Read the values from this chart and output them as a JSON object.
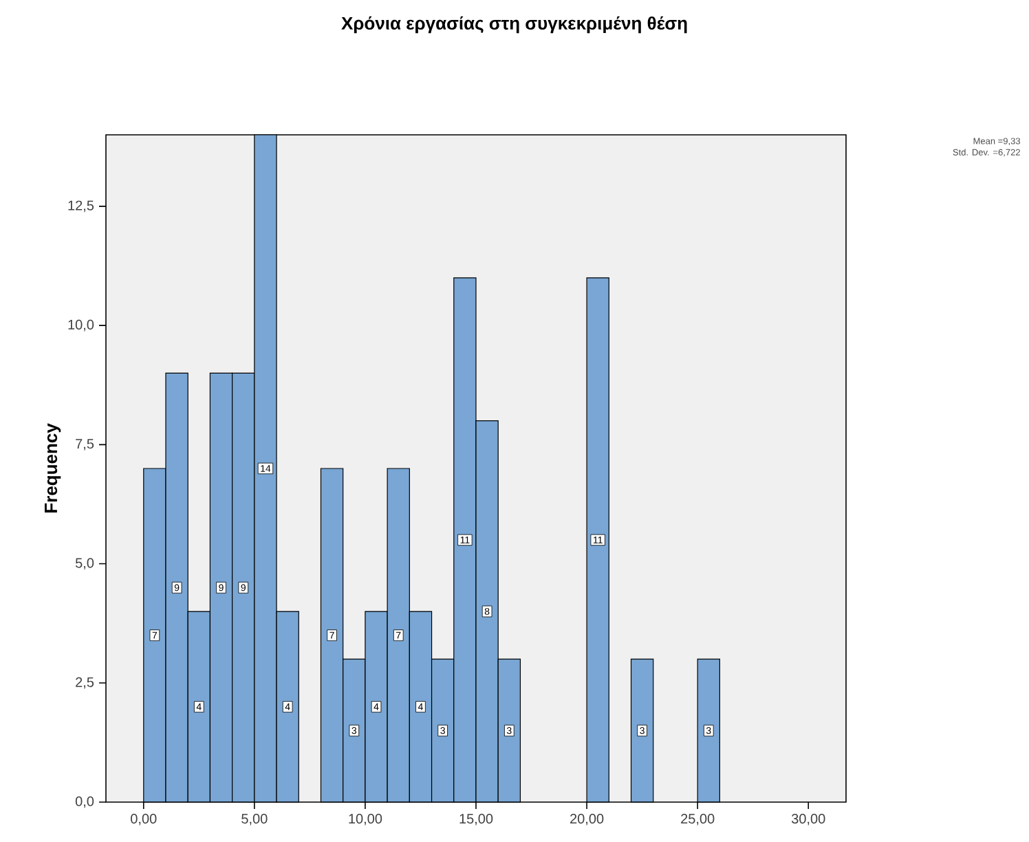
{
  "chart_data": {
    "type": "histogram",
    "title": "Χρόνια εργασίας στη συγκεκριμένη θέση",
    "ylabel": "Frequency",
    "bins": [
      0,
      1,
      2,
      3,
      4,
      5,
      6,
      7,
      8,
      9,
      10,
      11,
      12,
      13,
      14,
      15,
      16,
      17,
      18,
      19,
      20,
      21,
      22,
      23,
      24,
      25,
      26
    ],
    "values": [
      7,
      9,
      4,
      9,
      9,
      14,
      4,
      0,
      7,
      3,
      4,
      7,
      4,
      3,
      11,
      8,
      3,
      0,
      0,
      0,
      11,
      0,
      3,
      0,
      0,
      3
    ],
    "value_labels": [
      "7",
      "9",
      "4",
      "9",
      "9",
      "14",
      "4",
      null,
      "7",
      "3",
      "4",
      "7",
      "4",
      "3",
      "11",
      "8",
      "3",
      null,
      null,
      null,
      "11",
      null,
      "3",
      null,
      null,
      "3"
    ],
    "color": "#79a6d4",
    "xlim": [
      -1.7,
      31.7
    ],
    "ylim": [
      0,
      14
    ],
    "xticks": [
      {
        "value": 0,
        "label": "0,00"
      },
      {
        "value": 5,
        "label": "5,00"
      },
      {
        "value": 10,
        "label": "10,00"
      },
      {
        "value": 15,
        "label": "15,00"
      },
      {
        "value": 20,
        "label": "20,00"
      },
      {
        "value": 25,
        "label": "25,00"
      },
      {
        "value": 30,
        "label": "30,00"
      }
    ],
    "yticks": [
      {
        "value": 0,
        "label": "0,0"
      },
      {
        "value": 2.5,
        "label": "2,5"
      },
      {
        "value": 5,
        "label": "5,0"
      },
      {
        "value": 7.5,
        "label": "7,5"
      },
      {
        "value": 10,
        "label": "10,0"
      },
      {
        "value": 12.5,
        "label": "12,5"
      }
    ],
    "annotations": [
      "Mean =9,33",
      "Std. Dev. =6,722"
    ]
  }
}
